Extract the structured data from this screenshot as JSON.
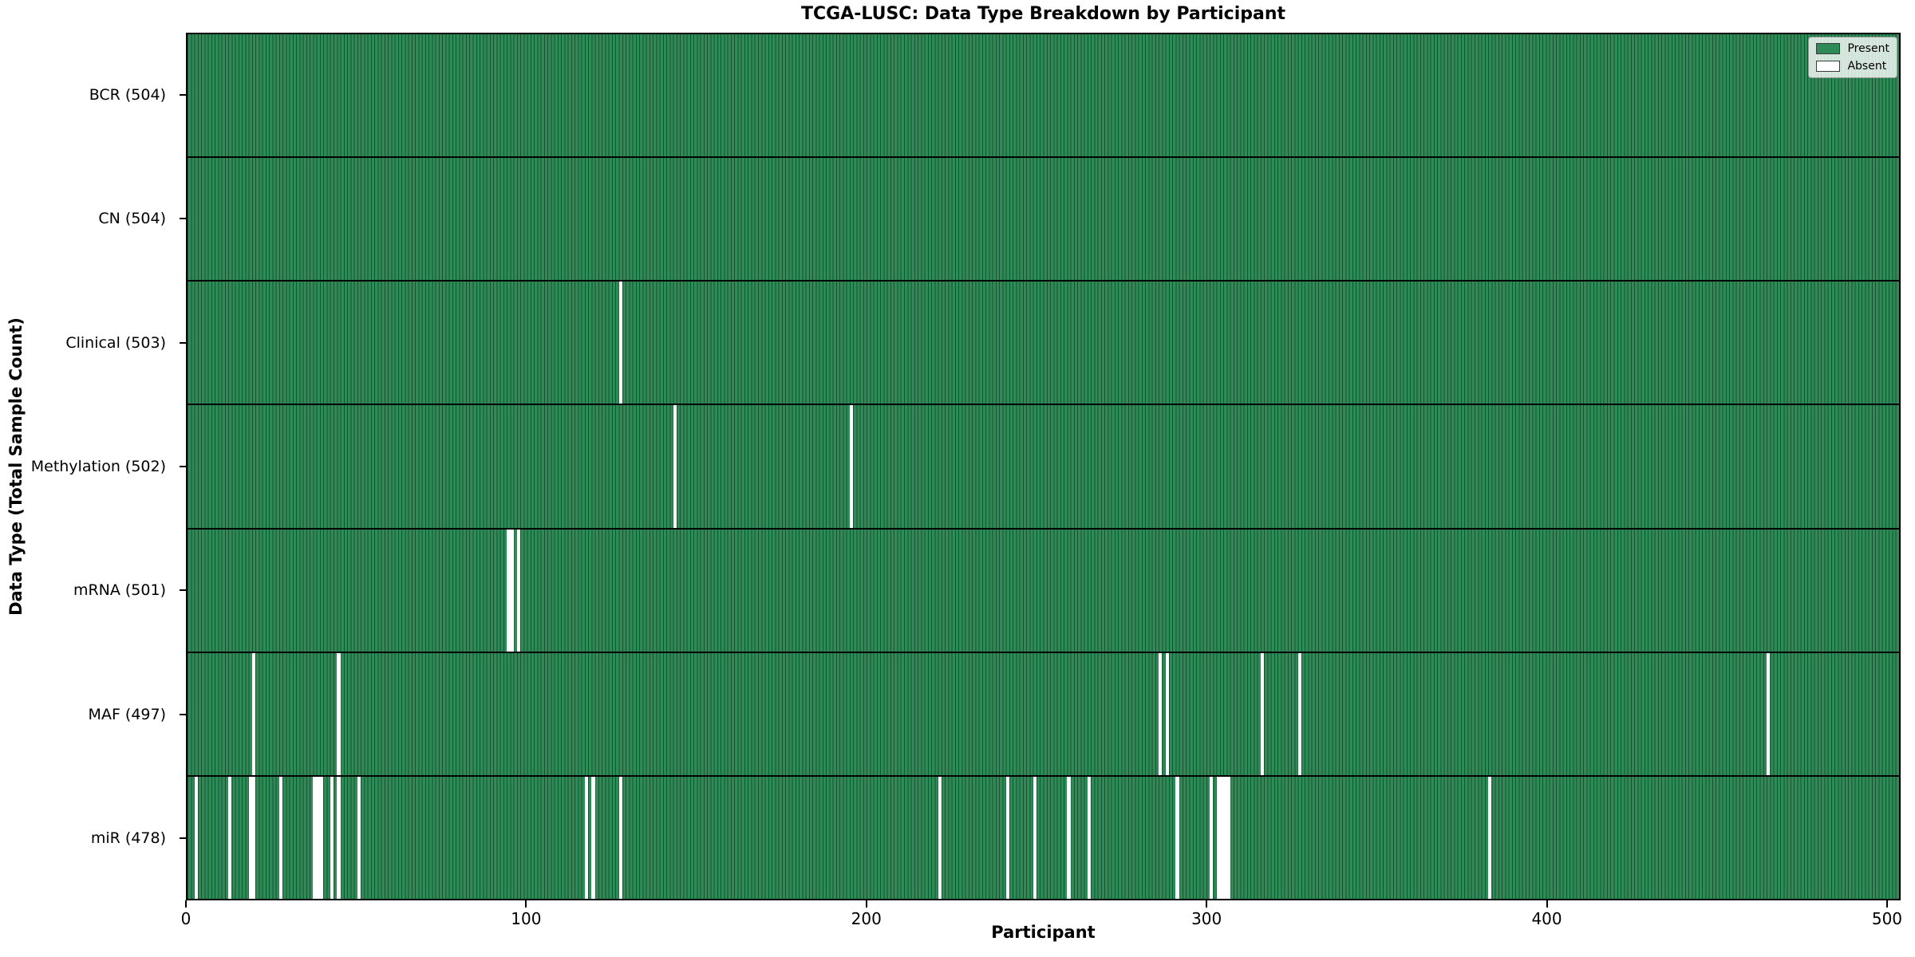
{
  "chart_data": {
    "type": "heatmap",
    "title": "TCGA-LUSC: Data Type Breakdown by Participant",
    "xlabel": "Participant",
    "ylabel": "Data Type (Total Sample Count)",
    "n_participants": 504,
    "xlim": [
      0,
      504
    ],
    "x_ticks": [
      0,
      100,
      200,
      300,
      400,
      500
    ],
    "grid": false,
    "legend_position": "upper right",
    "legend": [
      {
        "label": "Present",
        "color": "#2e8b57"
      },
      {
        "label": "Absent",
        "color": "#ffffff"
      }
    ],
    "colors": {
      "present": "#2e8b57",
      "absent": "#ffffff",
      "bar_edge": "#1a5230",
      "row_divider": "#000000"
    },
    "rows": [
      {
        "data_type": "BCR",
        "label": "BCR (504)",
        "total": 504,
        "absent_participants": []
      },
      {
        "data_type": "CN",
        "label": "CN (504)",
        "total": 504,
        "absent_participants": []
      },
      {
        "data_type": "Clinical",
        "label": "Clinical (503)",
        "total": 503,
        "absent_participants": [
          128
        ]
      },
      {
        "data_type": "Methylation",
        "label": "Methylation (502)",
        "total": 502,
        "absent_participants": [
          144,
          196
        ]
      },
      {
        "data_type": "mRNA",
        "label": "mRNA (501)",
        "total": 501,
        "absent_participants": [
          95,
          96,
          98
        ]
      },
      {
        "data_type": "MAF",
        "label": "MAF (497)",
        "total": 497,
        "absent_participants": [
          20,
          45,
          287,
          289,
          317,
          328,
          466
        ]
      },
      {
        "data_type": "miR",
        "label": "miR (478)",
        "total": 478,
        "absent_participants": [
          3,
          13,
          19,
          20,
          28,
          38,
          39,
          40,
          43,
          45,
          51,
          118,
          120,
          128,
          222,
          242,
          250,
          260,
          266,
          292,
          302,
          304,
          305,
          306,
          307,
          384
        ]
      }
    ]
  }
}
